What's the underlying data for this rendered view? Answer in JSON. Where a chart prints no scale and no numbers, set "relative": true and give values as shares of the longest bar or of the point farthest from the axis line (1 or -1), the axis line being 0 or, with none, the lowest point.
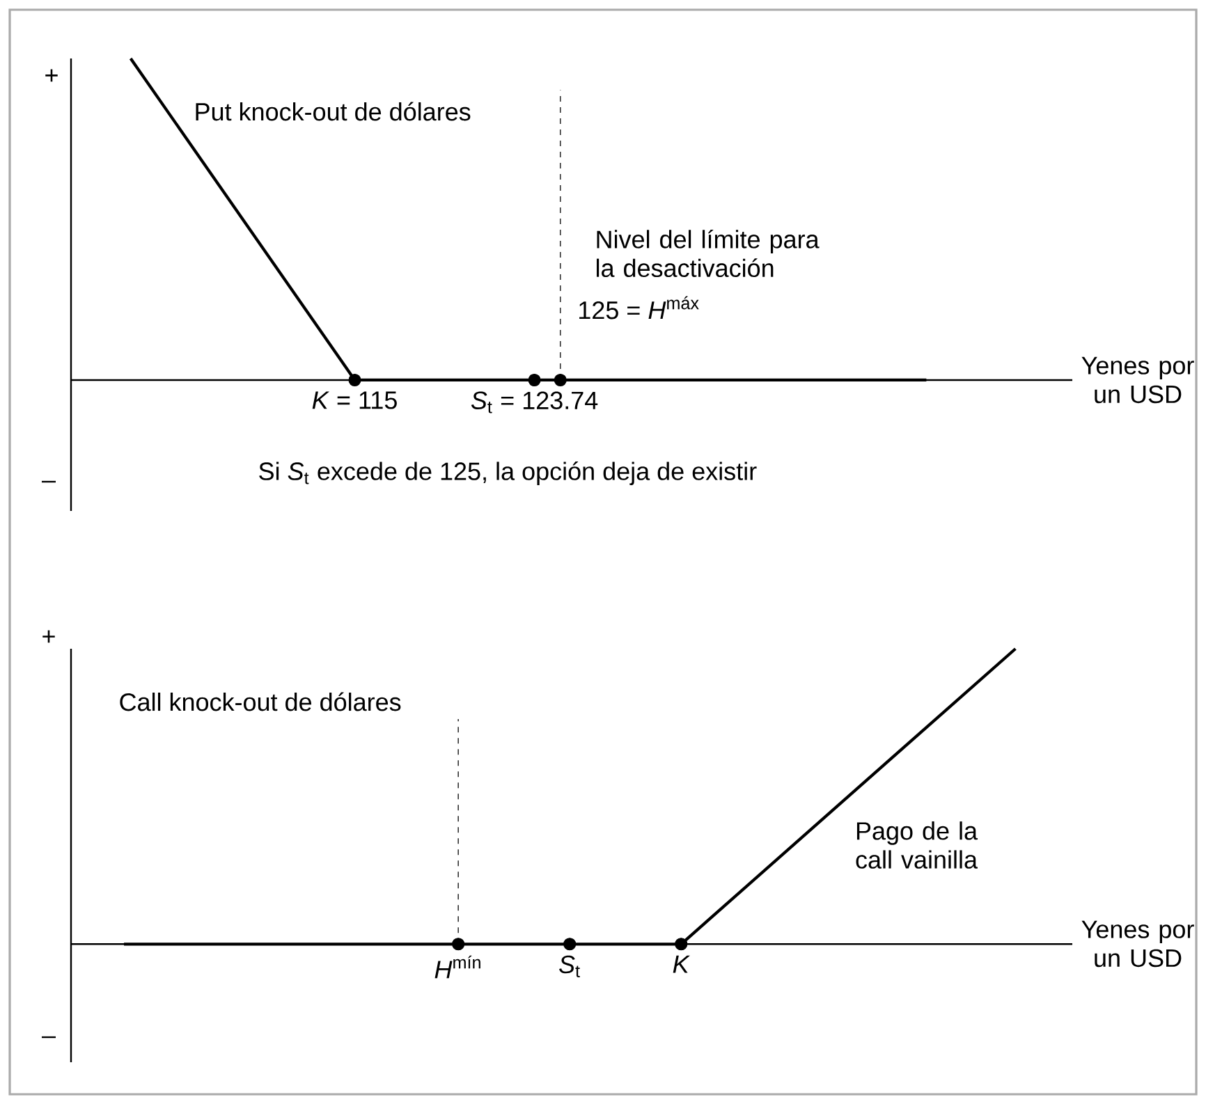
{
  "chart_data": [
    {
      "type": "line",
      "relative": true,
      "tick_labels": "x",
      "xlabel": "Yenes por un USD",
      "xlim": [
        101.2,
        149.9
      ],
      "xticks": [
        {
          "value": 115,
          "label": "*K* = 115"
        },
        {
          "value": 123.74,
          "label": "*S*$_{t}$ = 123.74"
        }
      ],
      "series": [
        {
          "type": "line",
          "color": "#000000",
          "line_style": "solid",
          "x": [
            104.1,
            115,
            142.8
          ],
          "values": [
            1,
            0,
            0
          ]
        },
        {
          "type": "scatter",
          "color": "#000000",
          "marker": "circle",
          "x": [
            115,
            123.74,
            125
          ],
          "values": [
            0,
            0,
            0
          ]
        }
      ],
      "ref_lines": [
        {
          "axis": "x",
          "value": 125,
          "label": "125 = *H*$^{máx}$",
          "color": "#333333",
          "line_style": "dashed"
        }
      ],
      "annotations": [
        "+",
        "–",
        "Put knock-out de dólares",
        "Nivel del límite para la desactivación",
        "Si *S*$_{t}$ excede de 125, la opción deja de existir"
      ]
    },
    {
      "type": "line",
      "relative": true,
      "tick_labels": "x",
      "xlabel": "Yenes por un USD",
      "categories": [
        null,
        null,
        null,
        "*H*$^{mín}$",
        "*S*$_{t}$",
        "*K*",
        null,
        null,
        null
      ],
      "series": [
        {
          "type": "line",
          "color": "#000000",
          "line_style": "solid",
          "values": [
            0,
            0,
            0,
            0,
            0,
            0,
            null,
            null,
            1
          ]
        },
        {
          "type": "scatter",
          "color": "#000000",
          "marker": "circle",
          "values": [
            null,
            null,
            null,
            0,
            0,
            0,
            null,
            null,
            null
          ]
        }
      ],
      "ref_lines": [
        {
          "axis": "x",
          "value": "*H*$^{mín}$",
          "color": "#333333",
          "line_style": "dashed"
        }
      ],
      "annotations": [
        "+",
        "–",
        "Call knock-out de dólares",
        "Pago de la call vainilla"
      ]
    }
  ]
}
